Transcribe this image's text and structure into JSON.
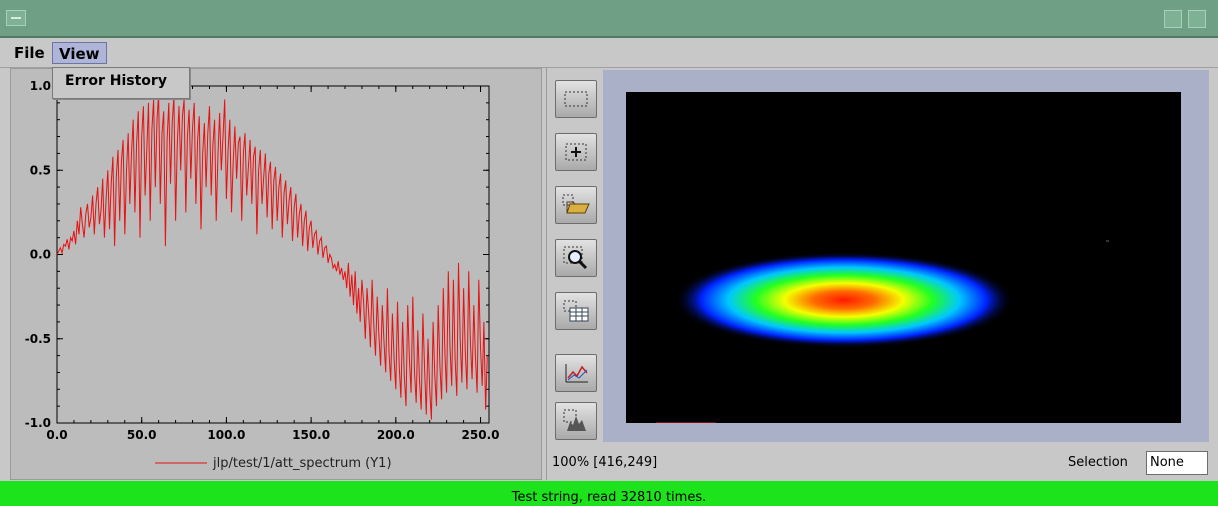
{
  "menubar": {
    "file": "File",
    "view": "View"
  },
  "view_menu": {
    "items": [
      "Error History"
    ]
  },
  "plot": {
    "legend": "jlp/test/1/att_spectrum (Y1)",
    "line_color": "#e81010"
  },
  "chart_data": {
    "type": "line",
    "xlim": [
      0,
      255
    ],
    "ylim": [
      -1.0,
      1.0
    ],
    "xticks": [
      "0.0",
      "50.0",
      "100.0",
      "150.0",
      "200.0",
      "250.0"
    ],
    "yticks": [
      "1.0",
      "0.5",
      "0.0",
      "-0.5",
      "-1.0"
    ],
    "series": [
      {
        "name": "jlp/test/1/att_spectrum (Y1)",
        "x_start": 0,
        "x_step": 1,
        "values": [
          0.0,
          0.02,
          0.04,
          0.01,
          0.06,
          0.05,
          0.09,
          0.03,
          0.1,
          0.08,
          0.14,
          0.06,
          0.2,
          0.12,
          0.28,
          0.18,
          0.1,
          0.24,
          0.3,
          0.16,
          0.22,
          0.35,
          0.12,
          0.3,
          0.4,
          0.18,
          0.26,
          0.45,
          0.1,
          0.33,
          0.5,
          0.15,
          0.42,
          0.58,
          0.05,
          0.46,
          0.62,
          0.2,
          0.55,
          0.68,
          0.12,
          0.5,
          0.72,
          0.3,
          0.6,
          0.8,
          0.25,
          0.66,
          0.85,
          0.1,
          0.7,
          0.88,
          0.35,
          0.62,
          0.9,
          0.2,
          0.74,
          0.92,
          0.4,
          0.8,
          0.95,
          0.3,
          0.72,
          0.85,
          0.05,
          0.68,
          0.9,
          0.42,
          0.78,
          0.94,
          0.2,
          0.66,
          0.88,
          0.5,
          0.82,
          0.92,
          0.25,
          0.7,
          0.86,
          0.45,
          0.75,
          0.9,
          0.3,
          0.68,
          0.82,
          0.15,
          0.6,
          0.78,
          0.4,
          0.72,
          0.88,
          0.35,
          0.65,
          0.8,
          0.2,
          0.58,
          0.84,
          0.5,
          0.7,
          0.92,
          0.33,
          0.62,
          0.8,
          0.25,
          0.55,
          0.76,
          0.45,
          0.66,
          0.7,
          0.2,
          0.6,
          0.72,
          0.35,
          0.52,
          0.68,
          0.3,
          0.58,
          0.64,
          0.12,
          0.5,
          0.62,
          0.3,
          0.46,
          0.6,
          0.22,
          0.48,
          0.55,
          0.15,
          0.44,
          0.52,
          0.2,
          0.4,
          0.48,
          0.1,
          0.36,
          0.44,
          0.18,
          0.32,
          0.4,
          0.08,
          0.28,
          0.36,
          0.1,
          0.24,
          0.3,
          0.05,
          0.2,
          0.26,
          0.02,
          0.16,
          0.2,
          0.04,
          0.12,
          0.14,
          0.0,
          0.08,
          0.1,
          -0.02,
          0.04,
          0.05,
          -0.05,
          0.0,
          -0.02,
          -0.08,
          -0.06,
          -0.1,
          -0.04,
          -0.12,
          -0.08,
          -0.15,
          -0.1,
          -0.2,
          -0.05,
          -0.25,
          -0.12,
          -0.3,
          -0.1,
          -0.35,
          -0.2,
          -0.4,
          -0.15,
          -0.28,
          -0.5,
          -0.2,
          -0.35,
          -0.55,
          -0.15,
          -0.42,
          -0.6,
          -0.25,
          -0.48,
          -0.66,
          -0.3,
          -0.52,
          -0.7,
          -0.2,
          -0.58,
          -0.75,
          -0.35,
          -0.62,
          -0.8,
          -0.28,
          -0.66,
          -0.85,
          -0.4,
          -0.72,
          -0.9,
          -0.3,
          -0.62,
          -0.82,
          -0.25,
          -0.7,
          -0.88,
          -0.45,
          -0.75,
          -0.92,
          -0.35,
          -0.68,
          -0.95,
          -0.5,
          -0.8,
          -0.98,
          -0.4,
          -0.72,
          -0.9,
          -0.3,
          -0.66,
          -0.86,
          -0.2,
          -0.6,
          -0.82,
          -0.1,
          -0.55,
          -0.78,
          -0.15,
          -0.62,
          -0.84,
          -0.05,
          -0.5,
          -0.76,
          -0.2,
          -0.58,
          -0.8,
          -0.1,
          -0.52,
          -0.74,
          -0.3,
          -0.6,
          -0.82,
          -0.15,
          -0.55,
          -0.78,
          -0.4,
          -0.92,
          -0.6
        ]
      }
    ]
  },
  "toolbar": {
    "icons": [
      "select-rect-icon",
      "crosshair-icon",
      "open-folder-icon",
      "zoom-icon",
      "table-icon",
      "profile-plot-icon",
      "histogram-icon"
    ]
  },
  "image_view": {
    "zoom_text": "100% [416,249]",
    "selection_label": "Selection",
    "selection_value": "None"
  },
  "status": {
    "text": "Test string, read 32810 times."
  }
}
